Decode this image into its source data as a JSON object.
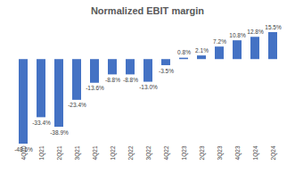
{
  "chart_data": {
    "type": "bar",
    "title": "Normalized EBIT margin",
    "categories": [
      "4Q20",
      "1Q21",
      "2Q21",
      "3Q21",
      "4Q21",
      "1Q22",
      "2Q22",
      "3Q22",
      "4Q22",
      "1Q23",
      "2Q23",
      "3Q23",
      "4Q23",
      "1Q24",
      "2Q24"
    ],
    "values": [
      -48.6,
      -33.4,
      -38.9,
      -23.4,
      -13.6,
      -8.8,
      -8.8,
      -13.0,
      -3.5,
      0.8,
      2.1,
      7.2,
      10.8,
      12.8,
      15.5
    ],
    "value_labels": [
      "-48.6%",
      "-33.4%",
      "-38.9%",
      "-23.4%",
      "-13.6%",
      "-8.8%",
      "-8.8%",
      "-13.0%",
      "-3.5%",
      "0.8%",
      "2.1%",
      "7.2%",
      "10.8%",
      "12.8%",
      "15.5%"
    ],
    "color": "#4472c4",
    "data_labels": true,
    "tick_labels": "x"
  }
}
